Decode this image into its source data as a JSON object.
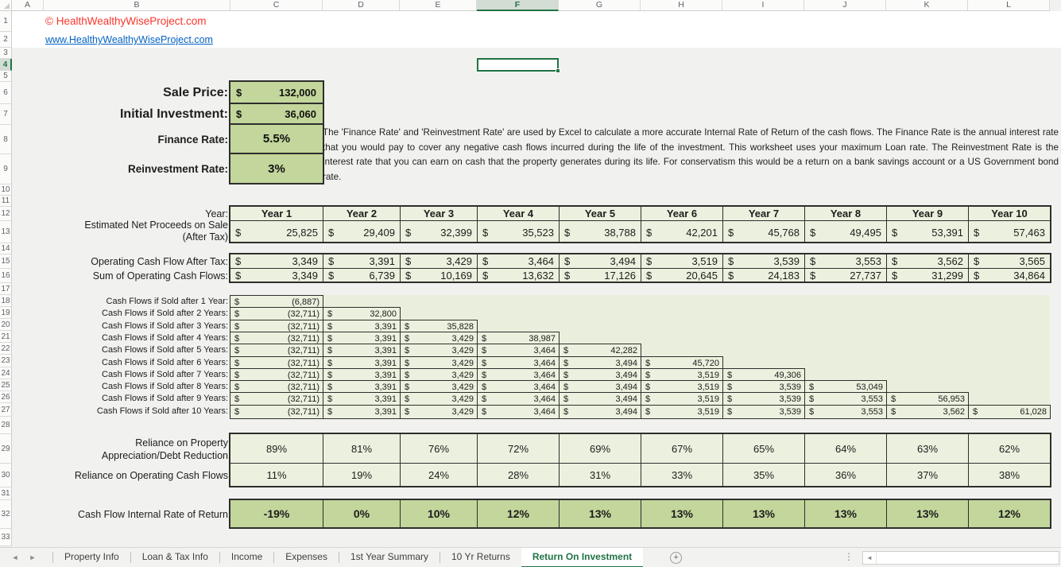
{
  "titlebar": {
    "copyright": "© HealthWealthyWiseProject.com",
    "url": "www.HealthyWealthyWiseProject.com"
  },
  "inputs": {
    "sale_price_label": "Sale Price:",
    "sale_price_currency": "$",
    "sale_price_value": "132,000",
    "initial_investment_label": "Initial Investment:",
    "initial_investment_currency": "$",
    "initial_investment_value": "36,060",
    "finance_rate_label": "Finance Rate:",
    "finance_rate_value": "5.5%",
    "reinvestment_rate_label": "Reinvestment Rate:",
    "reinvestment_rate_value": "3%"
  },
  "note": "The 'Finance Rate' and 'Reinvestment Rate' are used by Excel to calculate a more accurate Internal Rate of Return of the cash flows.  The Finance Rate is the annual interest rate that you would pay to cover any negative cash flows incurred during the life of the investment.  This worksheet uses your maximum Loan rate.  The Reinvestment Rate is the interest rate that you can earn on cash that the property generates during its life.  For conservatism this would be a return on a bank savings account or a US Government bond rate.",
  "table": {
    "currency": "$",
    "year_label": "Year:",
    "years": [
      "Year 1",
      "Year 2",
      "Year 3",
      "Year 4",
      "Year 5",
      "Year 6",
      "Year 7",
      "Year 8",
      "Year 9",
      "Year 10"
    ],
    "proceeds_label_line1": "Estimated Net Proceeds on Sale",
    "proceeds_label_line2": "(After Tax)",
    "proceeds": [
      "25,825",
      "29,409",
      "32,399",
      "35,523",
      "38,788",
      "42,201",
      "45,768",
      "49,495",
      "53,391",
      "57,463"
    ],
    "opcf_label": "Operating Cash Flow After Tax:",
    "opcf": [
      "3,349",
      "3,391",
      "3,429",
      "3,464",
      "3,494",
      "3,519",
      "3,539",
      "3,553",
      "3,562",
      "3,565"
    ],
    "sumcf_label": "Sum of Operating Cash Flows:",
    "sumcf": [
      "3,349",
      "6,739",
      "10,169",
      "13,632",
      "17,126",
      "20,645",
      "24,183",
      "27,737",
      "31,299",
      "34,864"
    ]
  },
  "triangle": {
    "labels": [
      "Cash Flows if Sold after 1 Year:",
      "Cash Flows if Sold after 2 Years:",
      "Cash Flows if Sold after 3 Years:",
      "Cash Flows if Sold after 4 Years:",
      "Cash Flows if Sold after 5 Years:",
      "Cash Flows if Sold after 6 Years:",
      "Cash Flows if Sold after 7 Years:",
      "Cash Flows if Sold after 8 Years:",
      "Cash Flows if Sold after 9 Years:",
      "Cash Flows if Sold after 10 Years:"
    ],
    "rows": [
      [
        "(6,887)"
      ],
      [
        "(32,711)",
        "32,800"
      ],
      [
        "(32,711)",
        "3,391",
        "35,828"
      ],
      [
        "(32,711)",
        "3,391",
        "3,429",
        "38,987"
      ],
      [
        "(32,711)",
        "3,391",
        "3,429",
        "3,464",
        "42,282"
      ],
      [
        "(32,711)",
        "3,391",
        "3,429",
        "3,464",
        "3,494",
        "45,720"
      ],
      [
        "(32,711)",
        "3,391",
        "3,429",
        "3,464",
        "3,494",
        "3,519",
        "49,306"
      ],
      [
        "(32,711)",
        "3,391",
        "3,429",
        "3,464",
        "3,494",
        "3,519",
        "3,539",
        "53,049"
      ],
      [
        "(32,711)",
        "3,391",
        "3,429",
        "3,464",
        "3,494",
        "3,519",
        "3,539",
        "3,553",
        "56,953"
      ],
      [
        "(32,711)",
        "3,391",
        "3,429",
        "3,464",
        "3,494",
        "3,519",
        "3,539",
        "3,553",
        "3,562",
        "61,028"
      ]
    ]
  },
  "reliance": {
    "appreciation_label_line1": "Reliance on Property",
    "appreciation_label_line2": "Appreciation/Debt Reduction",
    "appreciation": [
      "89%",
      "81%",
      "76%",
      "72%",
      "69%",
      "67%",
      "65%",
      "64%",
      "63%",
      "62%"
    ],
    "operating_label": "Reliance on Operating Cash Flows",
    "operating": [
      "11%",
      "19%",
      "24%",
      "28%",
      "31%",
      "33%",
      "35%",
      "36%",
      "37%",
      "38%"
    ]
  },
  "irr": {
    "label": "Cash Flow Internal Rate of Return",
    "values": [
      "-19%",
      "0%",
      "10%",
      "12%",
      "13%",
      "13%",
      "13%",
      "13%",
      "13%",
      "12%"
    ]
  },
  "grid": {
    "columns": [
      "A",
      "B",
      "C",
      "D",
      "E",
      "F",
      "G",
      "H",
      "I",
      "J",
      "K",
      "L"
    ],
    "selected_column": "F",
    "rows": [
      1,
      2,
      3,
      4,
      5,
      6,
      7,
      8,
      9,
      10,
      11,
      12,
      13,
      14,
      15,
      16,
      17,
      18,
      19,
      20,
      21,
      22,
      23,
      24,
      25,
      26,
      27,
      28,
      29,
      30,
      31,
      32,
      33
    ],
    "selected_row": 4
  },
  "tabbar": {
    "items": [
      "Property Info",
      "Loan & Tax Info",
      "Income",
      "Expenses",
      "1st Year Summary",
      "10 Yr Returns",
      "Return On Investment"
    ],
    "active_index": 6,
    "add_sheet_glyph": "+",
    "nav_left_glyph": "◄",
    "nav_right_glyph": "►",
    "more_dots_glyph": "⋮",
    "scroll_left_glyph": "◄"
  },
  "colors": {
    "accent_green": "#217346",
    "input_cell_green": "#c3d69b",
    "table_cell_green": "#ebf1de",
    "copyright_red": "#fb352b",
    "link_blue": "#0563c1"
  }
}
